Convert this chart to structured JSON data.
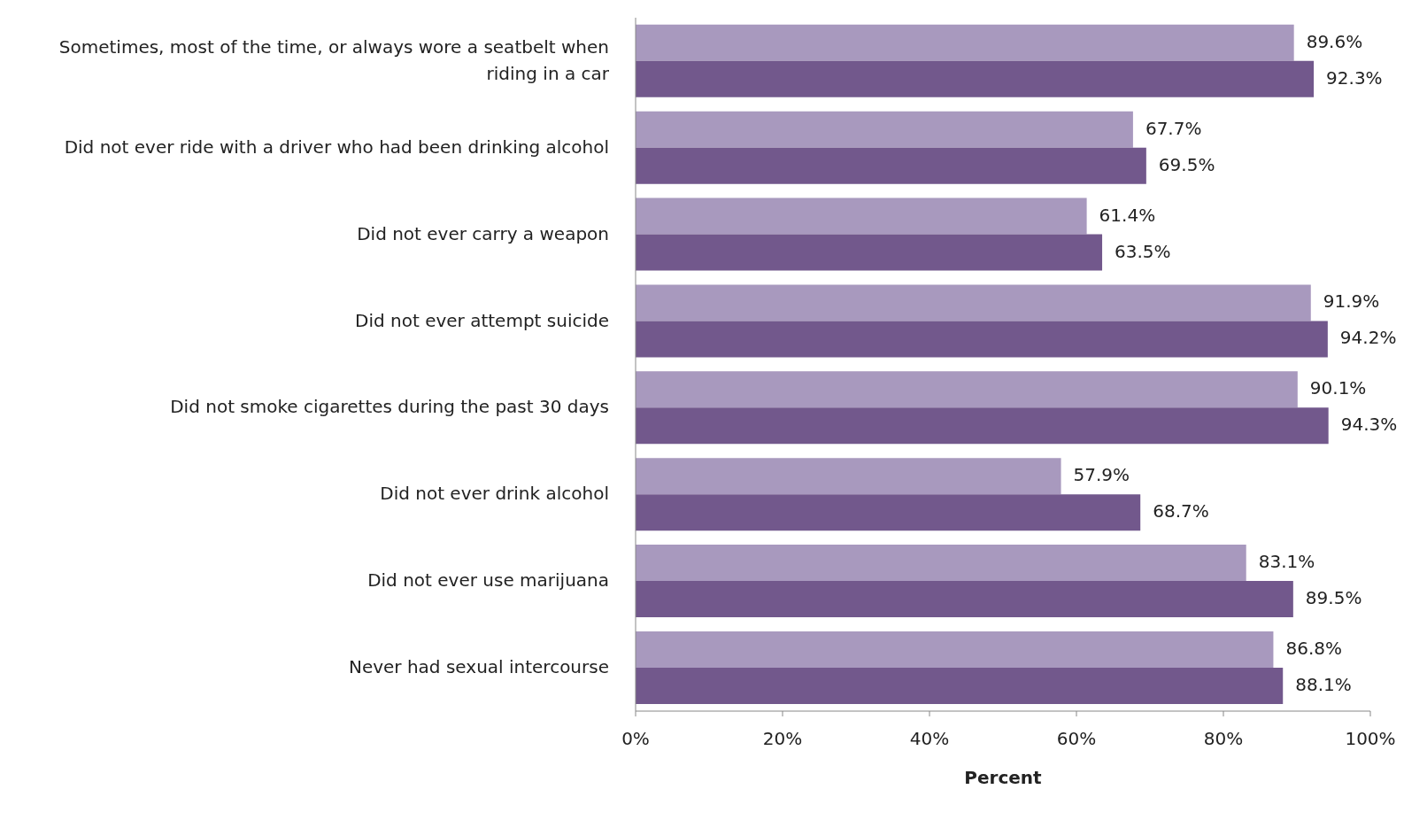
{
  "chart_data": {
    "type": "bar",
    "orientation": "horizontal",
    "xlabel": "Percent",
    "categories": [
      "Sometimes, most of the time, or always wore a seatbelt when riding in a car",
      "Did not ever ride with a driver who had been drinking alcohol",
      "Did not ever carry a weapon",
      "Did not ever attempt suicide",
      "Did not smoke cigarettes during the past 30 days",
      "Did not ever drink alcohol",
      "Did not ever use marijuana",
      "Never had sexual intercourse"
    ],
    "series": [
      {
        "color": "#a899be",
        "values": [
          89.6,
          67.7,
          61.4,
          91.9,
          90.1,
          57.9,
          83.1,
          86.8
        ],
        "value_labels": [
          "89.6%",
          "67.7%",
          "61.4%",
          "91.9%",
          "90.1%",
          "57.9%",
          "83.1%",
          "86.8%"
        ]
      },
      {
        "color": "#72588c",
        "values": [
          92.3,
          69.5,
          63.5,
          94.2,
          94.3,
          68.7,
          89.5,
          88.1
        ],
        "value_labels": [
          "92.3%",
          "69.5%",
          "63.5%",
          "94.2%",
          "94.3%",
          "68.7%",
          "89.5%",
          "88.1%"
        ]
      }
    ],
    "xlim": [
      0,
      100
    ],
    "xticks": [
      {
        "value": 0,
        "label": "0%"
      },
      {
        "value": 20,
        "label": "20%"
      },
      {
        "value": 40,
        "label": "40%"
      },
      {
        "value": 60,
        "label": "60%"
      },
      {
        "value": 80,
        "label": "80%"
      },
      {
        "value": 100,
        "label": "100%"
      }
    ],
    "grid": false,
    "legend": false
  }
}
